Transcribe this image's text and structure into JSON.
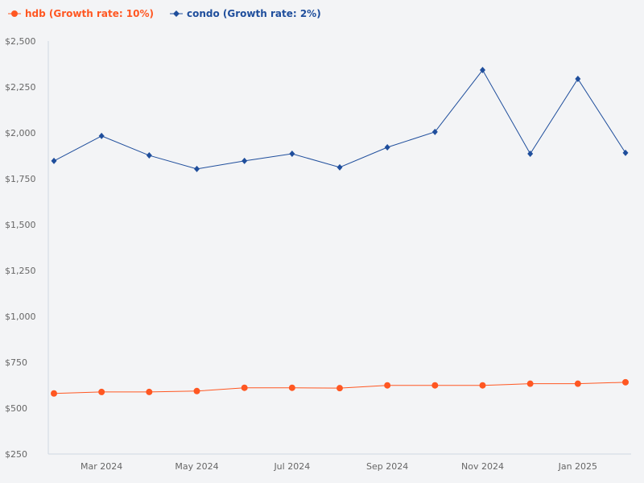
{
  "chart_data": {
    "type": "line",
    "x": [
      "Feb 2024",
      "Mar 2024",
      "Apr 2024",
      "May 2024",
      "Jun 2024",
      "Jul 2024",
      "Aug 2024",
      "Sep 2024",
      "Oct 2024",
      "Nov 2024",
      "Dec 2024",
      "Jan 2025",
      "Feb 2025"
    ],
    "x_tick_labels": [
      "Mar 2024",
      "May 2024",
      "Jul 2024",
      "Sep 2024",
      "Nov 2024",
      "Jan 2025"
    ],
    "y_ticks": [
      250,
      500,
      750,
      1000,
      1250,
      1500,
      1750,
      2000,
      2250,
      2500
    ],
    "y_tick_labels": [
      "$250",
      "$500",
      "$750",
      "$1,000",
      "$1,250",
      "$1,500",
      "$1,750",
      "$2,000",
      "$2,250",
      "$2,500"
    ],
    "ylim": [
      250,
      2500
    ],
    "grid": false,
    "legend_position": "top-left",
    "series": [
      {
        "name": "hdb (Growth rate: 10%)",
        "color": "#ff5722",
        "marker": "circle",
        "values": [
          580,
          588,
          588,
          593,
          611,
          611,
          609,
          624,
          624,
          624,
          633,
          633,
          641
        ]
      },
      {
        "name": "condo (Growth rate: 2%)",
        "color": "#1f4e9c",
        "marker": "diamond",
        "values": [
          1847,
          1983,
          1877,
          1803,
          1847,
          1886,
          1812,
          1921,
          2005,
          2342,
          1886,
          2294,
          1891
        ]
      }
    ]
  }
}
